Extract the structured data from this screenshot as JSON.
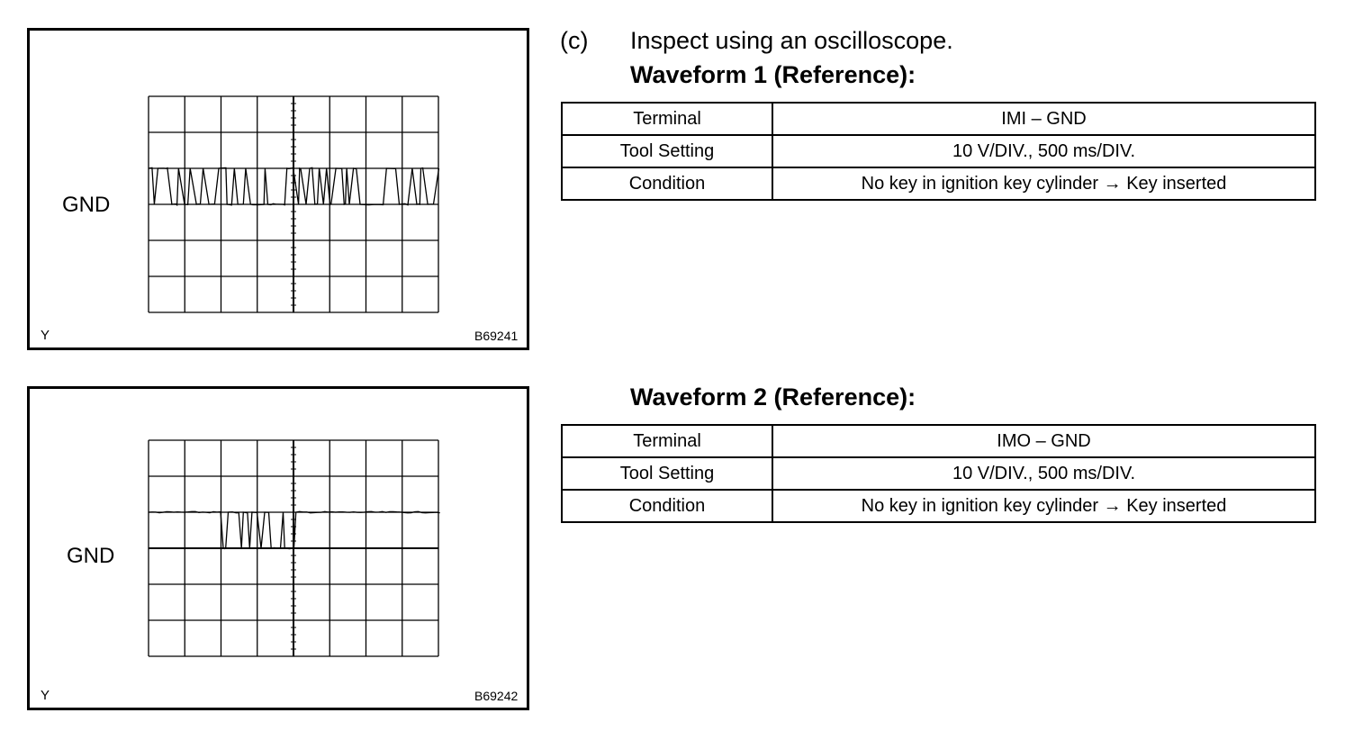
{
  "step": {
    "marker": "(c)",
    "text": "Inspect using an oscilloscope."
  },
  "waveforms": [
    {
      "heading": "Waveform 1 (Reference):",
      "ground_label": "GND",
      "axis_label": "Y",
      "figure_code": "B69241",
      "rows": [
        [
          "Terminal",
          "IMI – GND"
        ],
        [
          "Tool Setting",
          "10 V/DIV., 500 ms/DIV."
        ],
        [
          "Condition",
          "No key in ignition key cylinder → Key inserted"
        ]
      ]
    },
    {
      "heading": "Waveform 2 (Reference):",
      "ground_label": "GND",
      "axis_label": "Y",
      "figure_code": "B69242",
      "rows": [
        [
          "Terminal",
          "IMO – GND"
        ],
        [
          "Tool Setting",
          "10 V/DIV., 500 ms/DIV."
        ],
        [
          "Condition",
          "No key in ignition key cylinder → Key inserted"
        ]
      ]
    }
  ]
}
